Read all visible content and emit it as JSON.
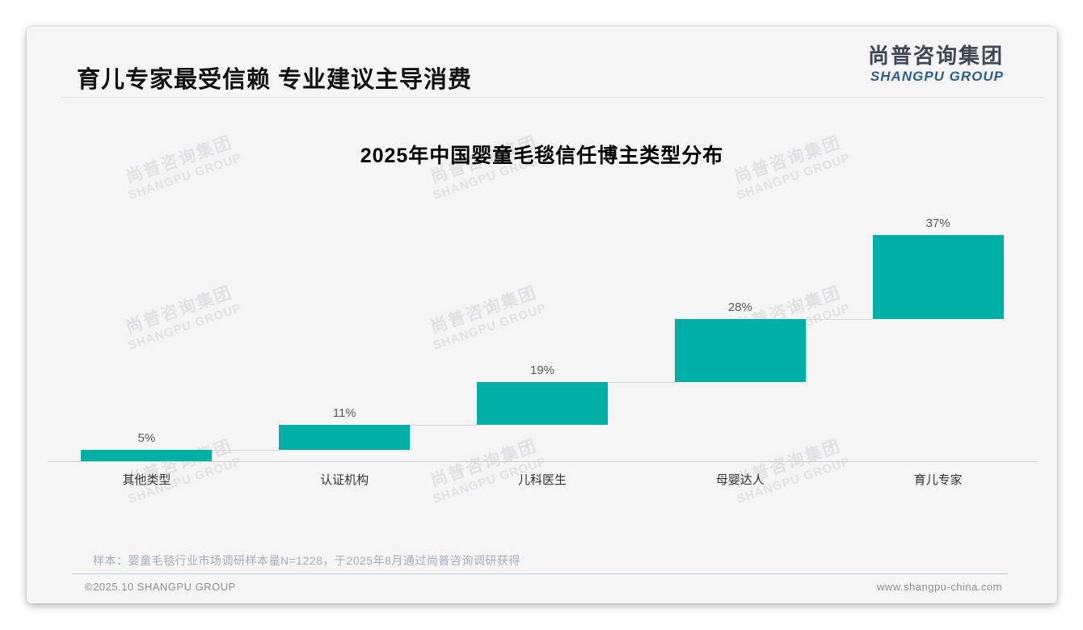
{
  "page": {
    "header": {
      "title": "育儿专家最受信赖 专业建议主导消费",
      "logo": {
        "cn": "尚普咨询集团",
        "en": "SHANGPU GROUP"
      }
    },
    "watermark": {
      "line1": "尚普咨询集团",
      "line2": "SHANGPU GROUP"
    },
    "footnote": "样本：婴童毛毯行业市场调研样本量N=1228，于2025年8月通过尚普咨询调研获得",
    "footer": {
      "left": "©2025.10 SHANGPU GROUP",
      "right": "www.shangpu-china.com"
    }
  },
  "chart_data": {
    "type": "bar",
    "subtype": "waterfall-steps",
    "title": "2025年中国婴童毛毯信任博主类型分布",
    "categories": [
      "其他类型",
      "认证机构",
      "儿科医生",
      "母婴达人",
      "育儿专家"
    ],
    "values": [
      5,
      11,
      19,
      28,
      37
    ],
    "value_labels": [
      "5%",
      "11%",
      "19%",
      "28%",
      "37%"
    ],
    "unit": "%",
    "ylim": [
      0,
      100
    ],
    "stacking": "each bar starts at cumulative sum of previous bars",
    "bar_color": "#00B0A6",
    "baseline_color": "#cfcfcf",
    "connector_color": "#d9d9d9",
    "value_label_color": "#595959",
    "category_label_color": "#333333",
    "grid": false,
    "legend": "none",
    "y_axis_visible": false
  }
}
